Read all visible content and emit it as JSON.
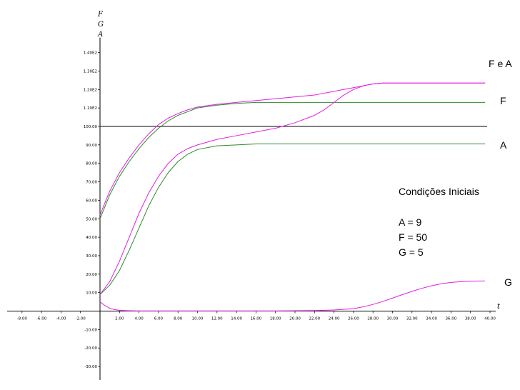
{
  "chart_data": {
    "type": "line",
    "axis_variables": [
      "F",
      "G",
      "A"
    ],
    "x_axis_label": "t",
    "xlim": [
      -9,
      40
    ],
    "ylim": [
      -35,
      145
    ],
    "x_ticks": [
      -8,
      -6,
      -4,
      -2,
      2,
      4,
      6,
      8,
      10,
      12,
      14,
      16,
      18,
      20,
      22,
      24,
      26,
      28,
      30,
      32,
      34,
      36,
      38,
      40
    ],
    "x_tick_labels": [
      "-8.00",
      "-6.00",
      "-4.00",
      "-2.00",
      "2.00",
      "4.00",
      "6.00",
      "8.00",
      "10.00",
      "12.00",
      "14.00",
      "16.00",
      "18.00",
      "20.00",
      "22.00",
      "24.00",
      "26.00",
      "28.00",
      "30.00",
      "32.00",
      "34.00",
      "36.00",
      "38.00",
      "40.00"
    ],
    "y_ticks": [
      -30,
      -20,
      -10,
      10,
      20,
      30,
      40,
      50,
      60,
      70,
      80,
      90,
      100,
      110,
      120,
      130,
      140
    ],
    "y_tick_labels": [
      "-30.00",
      "-20.00",
      "-10.00",
      "10.00",
      "20.00",
      "30.00",
      "40.00",
      "50.00",
      "60.00",
      "70.00",
      "80.00",
      "90.00",
      "100.00",
      "1.10E2",
      "1.20E2",
      "1.30E2",
      "1.40E2"
    ],
    "reference_line_y": 100,
    "series": [
      {
        "color": "#2e8b2e",
        "x": [
          0,
          1,
          2,
          3,
          4,
          5,
          6,
          7,
          8,
          9,
          10,
          12,
          14,
          16,
          18,
          20,
          22,
          24,
          26,
          28,
          30,
          32,
          34,
          36,
          38,
          39.5
        ],
        "y": [
          50,
          63,
          73,
          81,
          88,
          94,
          99,
          103,
          106,
          108,
          110,
          111.5,
          112.5,
          113,
          113,
          113,
          113,
          113,
          113,
          113,
          113,
          113,
          113,
          113,
          113,
          113
        ]
      },
      {
        "color": "#2e8b2e",
        "x": [
          0,
          1,
          2,
          3,
          4,
          5,
          6,
          7,
          8,
          9,
          10,
          12,
          14,
          16,
          18,
          20,
          22,
          24,
          26,
          28,
          30,
          32,
          34,
          36,
          38,
          39.5
        ],
        "y": [
          9,
          14,
          22,
          33,
          45,
          57,
          67,
          75,
          81,
          85,
          87.5,
          89.5,
          90,
          90.5,
          90.5,
          90.5,
          90.5,
          90.5,
          90.5,
          90.5,
          90.5,
          90.5,
          90.5,
          90.5,
          90.5,
          90.5
        ]
      },
      {
        "color": "#e020e0",
        "x": [
          0,
          1,
          2,
          3,
          4,
          5,
          6,
          7,
          8,
          9,
          10,
          12,
          14,
          16,
          18,
          20,
          22,
          24,
          25,
          26,
          27,
          28,
          29,
          30,
          32,
          34,
          36,
          38,
          39.5
        ],
        "y": [
          52,
          65,
          75,
          83,
          90,
          96,
          101,
          104.5,
          107,
          109,
          110.5,
          112,
          113,
          114,
          115,
          116,
          117,
          119,
          120,
          121,
          122,
          123,
          123.5,
          123.5,
          123.5,
          123.5,
          123.5,
          123.5,
          123.5
        ]
      },
      {
        "color": "#e020e0",
        "x": [
          0,
          1,
          2,
          3,
          4,
          5,
          6,
          7,
          8,
          9,
          10,
          12,
          14,
          16,
          18,
          20,
          22,
          23,
          24,
          25,
          26,
          27,
          28,
          29,
          30,
          32,
          34,
          36,
          38,
          39.5
        ],
        "y": [
          9,
          16,
          27,
          40,
          53,
          64,
          73,
          80,
          85,
          88,
          90,
          93,
          95,
          97,
          99,
          102,
          106,
          109,
          113,
          117,
          120,
          122,
          123,
          123.5,
          123.5,
          123.5,
          123.5,
          123.5,
          123.5,
          123.5
        ]
      },
      {
        "color": "#e020e0",
        "x": [
          0,
          0.5,
          1,
          1.5,
          2,
          3,
          4,
          6,
          10,
          14,
          18,
          20,
          22,
          24,
          26,
          27,
          28,
          29,
          30,
          31,
          32,
          33,
          34,
          35,
          36,
          37,
          38,
          39,
          39.5
        ],
        "y": [
          5,
          3,
          1.5,
          0.8,
          0.4,
          0.2,
          0.1,
          0.1,
          0.1,
          0.1,
          0.1,
          0.2,
          0.3,
          0.6,
          1.3,
          2.3,
          3.6,
          5.2,
          7,
          8.9,
          10.7,
          12.3,
          13.7,
          14.8,
          15.5,
          15.9,
          16.2,
          16.3,
          16.3
        ]
      }
    ],
    "curve_labels": [
      "F e  A",
      "F",
      "A",
      "G"
    ],
    "annotation": {
      "title": "Condições Iniciais",
      "lines": [
        "A = 9",
        "F = 50",
        "G = 5"
      ]
    }
  }
}
